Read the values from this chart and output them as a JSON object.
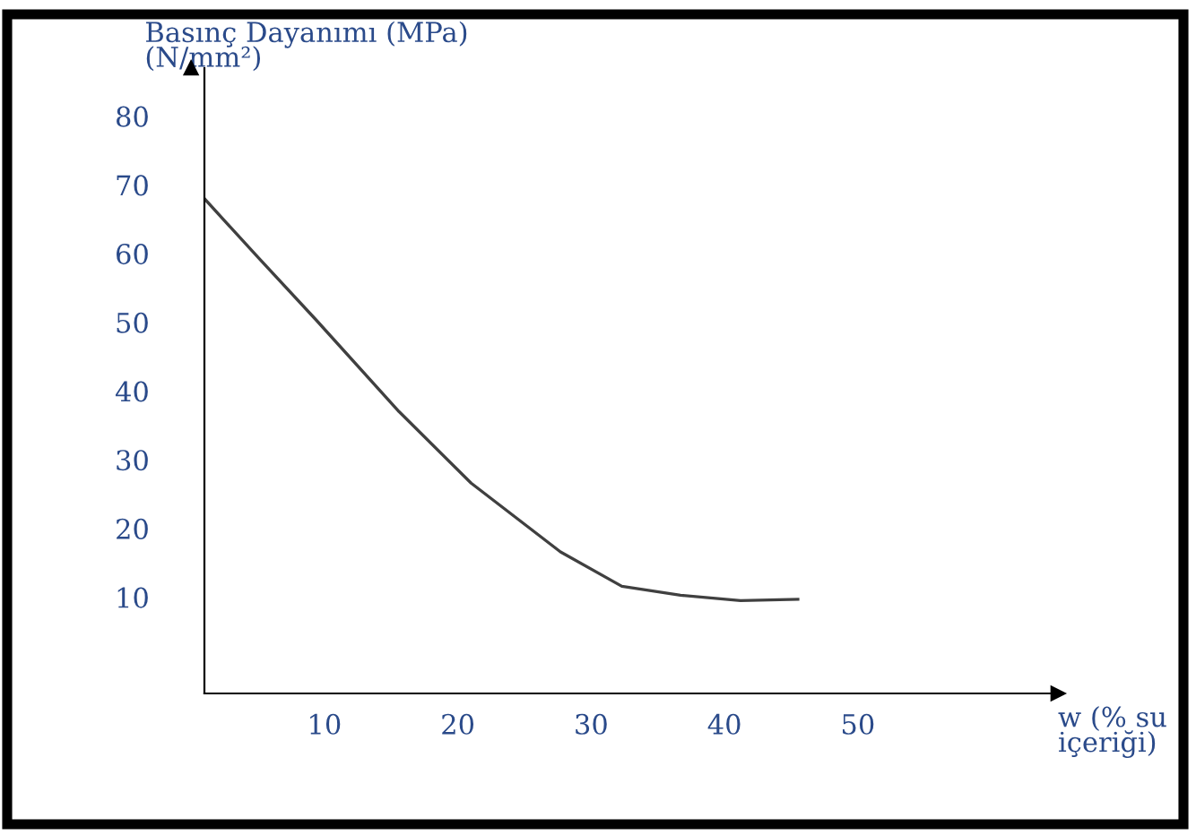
{
  "chart_data": {
    "type": "line",
    "ylabel": "Basınç Dayanımı (MPa)\n(N/mm²)",
    "xlabel": "w (% su\niçeriği)",
    "series": [
      {
        "color": "#404040",
        "x": [
          1,
          5,
          9.4,
          15.6,
          21,
          27.7,
          32.3,
          36.7,
          41.2,
          45.5
        ],
        "values": [
          68,
          59.5,
          50.3,
          37,
          26.6,
          16.6,
          11.6,
          10.3,
          9.5,
          9.7
        ]
      }
    ],
    "xlim": [
      1,
      65
    ],
    "ylim": [
      -4,
      87
    ],
    "xticks": [
      10,
      20,
      30,
      40,
      50
    ],
    "yticks": [
      10,
      20,
      30,
      40,
      50,
      60,
      70,
      80
    ],
    "grid": false,
    "legend": false,
    "marker": "none",
    "line_style": "solid"
  }
}
